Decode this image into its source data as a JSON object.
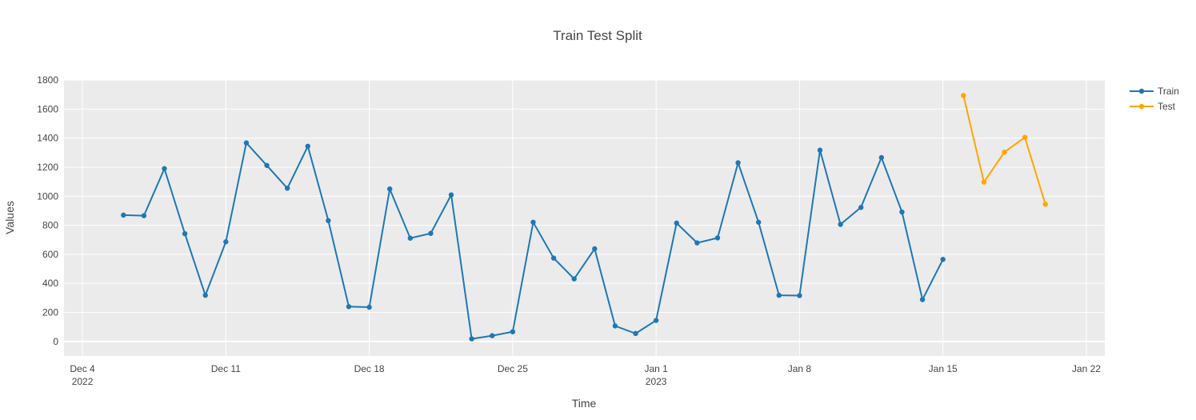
{
  "chart_data": {
    "type": "line",
    "title": "Train Test Split",
    "xlabel": "Time",
    "ylabel": "Values",
    "xlim": [
      "2022-12-04",
      "2023-01-22"
    ],
    "ylim": [
      -100,
      1800
    ],
    "x_ticks": [
      {
        "date": "2022-12-04",
        "label": "Dec 4",
        "sublabel": "2022"
      },
      {
        "date": "2022-12-11",
        "label": "Dec 11",
        "sublabel": ""
      },
      {
        "date": "2022-12-18",
        "label": "Dec 18",
        "sublabel": ""
      },
      {
        "date": "2022-12-25",
        "label": "Dec 25",
        "sublabel": ""
      },
      {
        "date": "2023-01-01",
        "label": "Jan 1",
        "sublabel": "2023"
      },
      {
        "date": "2023-01-08",
        "label": "Jan 8",
        "sublabel": ""
      },
      {
        "date": "2023-01-15",
        "label": "Jan 15",
        "sublabel": ""
      },
      {
        "date": "2023-01-22",
        "label": "Jan 22",
        "sublabel": ""
      }
    ],
    "y_ticks": [
      0,
      200,
      400,
      600,
      800,
      1000,
      1200,
      1400,
      1600,
      1800
    ],
    "grid": true,
    "legend_position": "top-right",
    "series": [
      {
        "name": "Train",
        "color": "#1f77b4",
        "x": [
          "2022-12-06",
          "2022-12-07",
          "2022-12-08",
          "2022-12-09",
          "2022-12-10",
          "2022-12-11",
          "2022-12-12",
          "2022-12-13",
          "2022-12-14",
          "2022-12-15",
          "2022-12-16",
          "2022-12-17",
          "2022-12-18",
          "2022-12-19",
          "2022-12-20",
          "2022-12-21",
          "2022-12-22",
          "2022-12-23",
          "2022-12-24",
          "2022-12-25",
          "2022-12-26",
          "2022-12-27",
          "2022-12-28",
          "2022-12-29",
          "2022-12-30",
          "2022-12-31",
          "2023-01-01",
          "2023-01-02",
          "2023-01-03",
          "2023-01-04",
          "2023-01-05",
          "2023-01-06",
          "2023-01-07",
          "2023-01-08",
          "2023-01-09",
          "2023-01-10",
          "2023-01-11",
          "2023-01-12",
          "2023-01-13",
          "2023-01-14",
          "2023-01-15"
        ],
        "y": [
          870,
          866,
          1190,
          742,
          318,
          686,
          1367,
          1212,
          1055,
          1344,
          832,
          240,
          236,
          1050,
          711,
          744,
          1009,
          18,
          40,
          67,
          821,
          574,
          431,
          638,
          107,
          55,
          145,
          815,
          679,
          713,
          1230,
          821,
          318,
          316,
          1317,
          806,
          923,
          1266,
          891,
          288,
          565
        ]
      },
      {
        "name": "Test",
        "color": "#ffa500",
        "x": [
          "2023-01-16",
          "2023-01-17",
          "2023-01-18",
          "2023-01-19",
          "2023-01-20"
        ],
        "y": [
          1693,
          1097,
          1303,
          1405,
          945
        ]
      }
    ]
  }
}
